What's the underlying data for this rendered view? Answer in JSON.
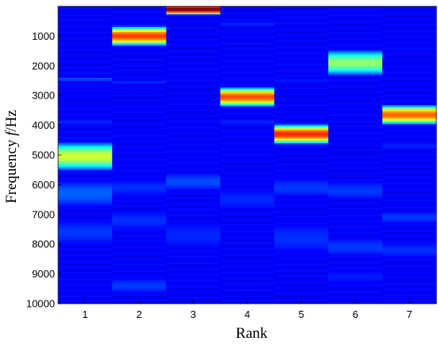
{
  "chart_data": {
    "type": "heatmap",
    "title": "",
    "xlabel": "Rank",
    "ylabel": "Frequency f/Hz",
    "ylabel_prefix": "Frequency ",
    "ylabel_var": "f",
    "ylabel_unit": "/Hz",
    "categories": [
      "1",
      "2",
      "3",
      "4",
      "5",
      "6",
      "7"
    ],
    "yticks": [
      "1000",
      "2000",
      "3000",
      "4000",
      "5000",
      "6000",
      "7000",
      "8000",
      "9000",
      "10000"
    ],
    "ylim": [
      0,
      10000
    ],
    "colormap": "jet",
    "background_intensity": 0.12,
    "columns": [
      {
        "rank": 1,
        "bands": [
          {
            "center": 5050,
            "width": 1000,
            "peak": 0.58
          },
          {
            "center": 2450,
            "width": 150,
            "peak": 0.2
          },
          {
            "center": 3900,
            "width": 200,
            "peak": 0.16
          },
          {
            "center": 6300,
            "width": 900,
            "peak": 0.22
          },
          {
            "center": 7600,
            "width": 800,
            "peak": 0.18
          }
        ]
      },
      {
        "rank": 2,
        "bands": [
          {
            "center": 1000,
            "width": 700,
            "peak": 0.82
          },
          {
            "center": 2550,
            "width": 150,
            "peak": 0.16
          },
          {
            "center": 6100,
            "width": 500,
            "peak": 0.17
          },
          {
            "center": 7200,
            "width": 600,
            "peak": 0.17
          },
          {
            "center": 9400,
            "width": 500,
            "peak": 0.18
          }
        ]
      },
      {
        "rank": 3,
        "bands": [
          {
            "center": 100,
            "width": 400,
            "peak": 1.0
          },
          {
            "center": 5900,
            "width": 600,
            "peak": 0.2
          },
          {
            "center": 7700,
            "width": 900,
            "peak": 0.16
          }
        ]
      },
      {
        "rank": 4,
        "bands": [
          {
            "center": 3050,
            "width": 700,
            "peak": 0.8
          },
          {
            "center": 600,
            "width": 150,
            "peak": 0.16
          },
          {
            "center": 3900,
            "width": 150,
            "peak": 0.16
          },
          {
            "center": 6500,
            "width": 700,
            "peak": 0.16
          }
        ]
      },
      {
        "rank": 5,
        "bands": [
          {
            "center": 4300,
            "width": 700,
            "peak": 0.84
          },
          {
            "center": 2500,
            "width": 150,
            "peak": 0.15
          },
          {
            "center": 6100,
            "width": 600,
            "peak": 0.18
          },
          {
            "center": 7800,
            "width": 900,
            "peak": 0.17
          }
        ]
      },
      {
        "rank": 6,
        "bands": [
          {
            "center": 1900,
            "width": 900,
            "peak": 0.52
          },
          {
            "center": 6200,
            "width": 600,
            "peak": 0.18
          },
          {
            "center": 8100,
            "width": 600,
            "peak": 0.18
          },
          {
            "center": 9100,
            "width": 400,
            "peak": 0.15
          }
        ]
      },
      {
        "rank": 7,
        "bands": [
          {
            "center": 3650,
            "width": 700,
            "peak": 0.78
          },
          {
            "center": 4700,
            "width": 200,
            "peak": 0.16
          },
          {
            "center": 7100,
            "width": 400,
            "peak": 0.18
          },
          {
            "center": 8200,
            "width": 500,
            "peak": 0.17
          }
        ]
      }
    ]
  }
}
